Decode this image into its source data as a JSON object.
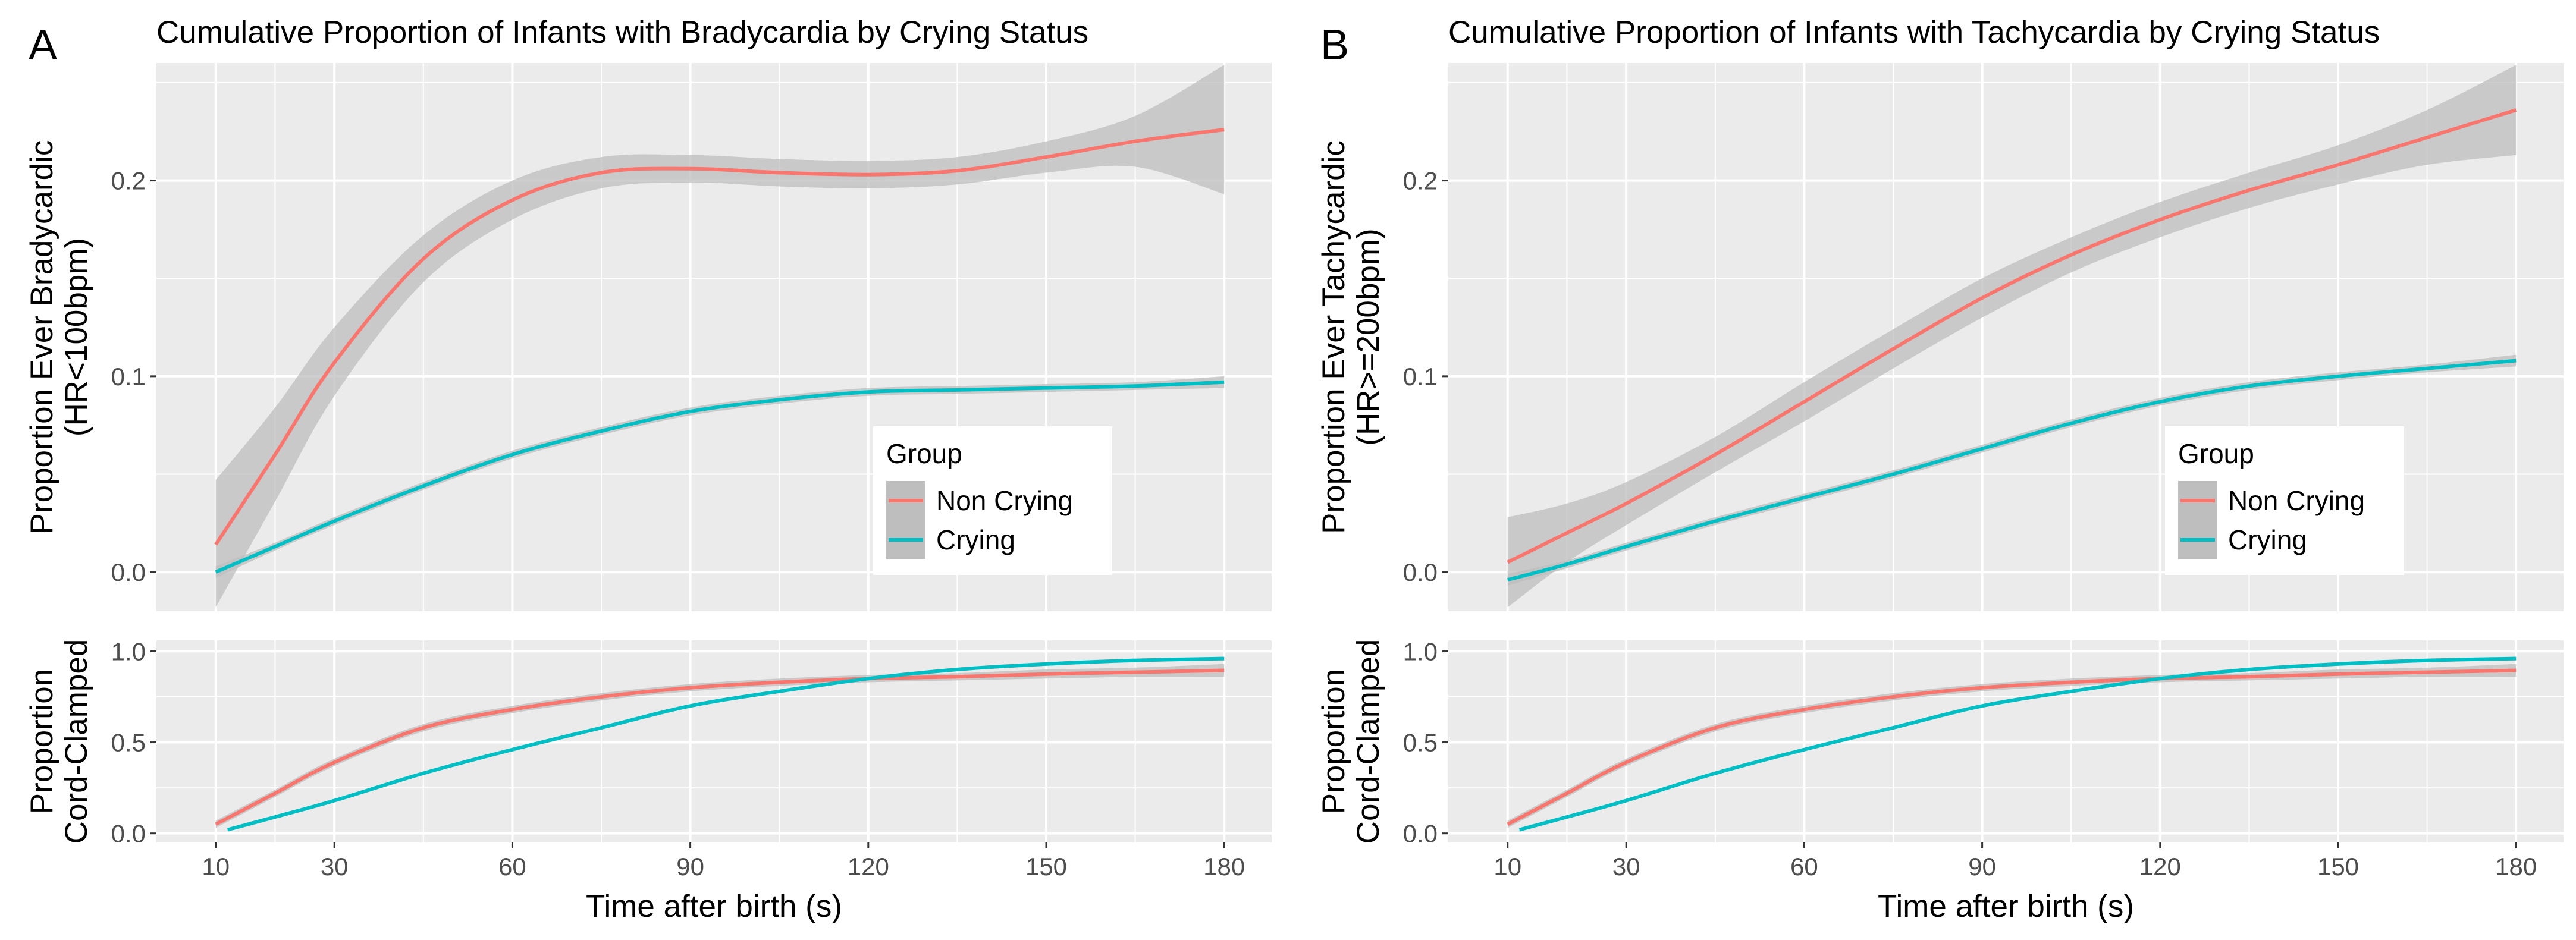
{
  "chart_data": [
    {
      "type": "line",
      "panel_label": "A",
      "title": "Cumulative Proportion of Infants with Bradycardia by Crying Status",
      "xlabel": "Time after birth (s)",
      "x_ticks": [
        10,
        30,
        60,
        90,
        120,
        150,
        180
      ],
      "xlim": [
        0,
        188
      ],
      "legend": {
        "title": "Group",
        "placement": "right",
        "entries": [
          "Non Crying",
          "Crying"
        ]
      },
      "top": {
        "ylabel_line1": "Proportion Ever Bradycardic",
        "ylabel_line2": "(HR<100bpm)",
        "ylim": [
          -0.02,
          0.26
        ],
        "y_ticks": [
          0.0,
          0.1,
          0.2
        ],
        "y_tick_labels": [
          "0.0",
          "0.1",
          "0.2"
        ],
        "series": [
          {
            "name": "Non Crying",
            "color": "#F8766D",
            "points": [
              [
                10,
                0.014
              ],
              [
                20,
                0.06
              ],
              [
                30,
                0.107
              ],
              [
                45,
                0.16
              ],
              [
                60,
                0.19
              ],
              [
                75,
                0.204
              ],
              [
                90,
                0.206
              ],
              [
                105,
                0.204
              ],
              [
                120,
                0.203
              ],
              [
                135,
                0.205
              ],
              [
                150,
                0.212
              ],
              [
                165,
                0.22
              ],
              [
                180,
                0.226
              ]
            ],
            "ci_lower": [
              -0.018,
              0.036,
              0.09,
              0.148,
              0.18,
              0.196,
              0.199,
              0.197,
              0.196,
              0.198,
              0.204,
              0.207,
              0.193
            ],
            "ci_upper": [
              0.047,
              0.084,
              0.125,
              0.172,
              0.2,
              0.212,
              0.213,
              0.211,
              0.21,
              0.212,
              0.22,
              0.233,
              0.259
            ]
          },
          {
            "name": "Crying",
            "color": "#00BFC4",
            "points": [
              [
                10,
                0.0
              ],
              [
                20,
                0.013
              ],
              [
                30,
                0.026
              ],
              [
                45,
                0.044
              ],
              [
                60,
                0.06
              ],
              [
                75,
                0.072
              ],
              [
                90,
                0.082
              ],
              [
                105,
                0.088
              ],
              [
                120,
                0.092
              ],
              [
                135,
                0.093
              ],
              [
                150,
                0.094
              ],
              [
                165,
                0.095
              ],
              [
                180,
                0.097
              ]
            ],
            "ci_lower": [
              -0.003,
              0.011,
              0.024,
              0.042,
              0.058,
              0.07,
              0.08,
              0.086,
              0.09,
              0.091,
              0.092,
              0.093,
              0.094
            ],
            "ci_upper": [
              0.003,
              0.015,
              0.028,
              0.046,
              0.062,
              0.074,
              0.084,
              0.09,
              0.094,
              0.095,
              0.096,
              0.097,
              0.1
            ]
          }
        ]
      },
      "bottom": {
        "ylabel_line1": "Proportion",
        "ylabel_line2": "Cord-Clamped",
        "ylim": [
          -0.05,
          1.06
        ],
        "y_ticks": [
          0.0,
          0.5,
          1.0
        ],
        "y_tick_labels": [
          "0.0",
          "0.5",
          "1.0"
        ],
        "series": [
          {
            "name": "Non Crying",
            "color": "#F8766D",
            "points": [
              [
                10,
                0.05
              ],
              [
                20,
                0.22
              ],
              [
                30,
                0.39
              ],
              [
                45,
                0.58
              ],
              [
                60,
                0.68
              ],
              [
                75,
                0.75
              ],
              [
                90,
                0.8
              ],
              [
                105,
                0.83
              ],
              [
                120,
                0.85
              ],
              [
                135,
                0.86
              ],
              [
                150,
                0.875
              ],
              [
                165,
                0.885
              ],
              [
                180,
                0.895
              ]
            ],
            "ci_lower": [
              0.03,
              0.2,
              0.37,
              0.56,
              0.66,
              0.73,
              0.78,
              0.81,
              0.83,
              0.84,
              0.85,
              0.86,
              0.86
            ],
            "ci_upper": [
              0.07,
              0.24,
              0.41,
              0.6,
              0.7,
              0.77,
              0.82,
              0.85,
              0.87,
              0.88,
              0.9,
              0.91,
              0.93
            ]
          },
          {
            "name": "Crying",
            "color": "#00BFC4",
            "points": [
              [
                12,
                0.02
              ],
              [
                20,
                0.09
              ],
              [
                30,
                0.18
              ],
              [
                45,
                0.33
              ],
              [
                60,
                0.46
              ],
              [
                75,
                0.58
              ],
              [
                90,
                0.7
              ],
              [
                105,
                0.78
              ],
              [
                120,
                0.85
              ],
              [
                135,
                0.9
              ],
              [
                150,
                0.93
              ],
              [
                165,
                0.95
              ],
              [
                180,
                0.96
              ]
            ],
            "ci_lower": [
              0.01,
              0.08,
              0.17,
              0.32,
              0.45,
              0.57,
              0.69,
              0.77,
              0.84,
              0.89,
              0.92,
              0.94,
              0.95
            ],
            "ci_upper": [
              0.03,
              0.1,
              0.19,
              0.34,
              0.47,
              0.59,
              0.71,
              0.79,
              0.86,
              0.91,
              0.94,
              0.96,
              0.97
            ]
          }
        ]
      }
    },
    {
      "type": "line",
      "panel_label": "B",
      "title": "Cumulative Proportion of Infants with Tachycardia by Crying Status",
      "xlabel": "Time after birth (s)",
      "x_ticks": [
        10,
        30,
        60,
        90,
        120,
        150,
        180
      ],
      "xlim": [
        0,
        188
      ],
      "legend": {
        "title": "Group",
        "placement": "right",
        "entries": [
          "Non Crying",
          "Crying"
        ]
      },
      "top": {
        "ylabel_line1": "Proportion Ever Tachycardic",
        "ylabel_line2": "(HR>=200bpm)",
        "ylim": [
          -0.02,
          0.26
        ],
        "y_ticks": [
          0.0,
          0.1,
          0.2
        ],
        "y_tick_labels": [
          "0.0",
          "0.1",
          "0.2"
        ],
        "series": [
          {
            "name": "Non Crying",
            "color": "#F8766D",
            "points": [
              [
                10,
                0.005
              ],
              [
                20,
                0.02
              ],
              [
                30,
                0.035
              ],
              [
                45,
                0.06
              ],
              [
                60,
                0.087
              ],
              [
                75,
                0.114
              ],
              [
                90,
                0.14
              ],
              [
                105,
                0.162
              ],
              [
                120,
                0.18
              ],
              [
                135,
                0.195
              ],
              [
                150,
                0.208
              ],
              [
                165,
                0.222
              ],
              [
                180,
                0.236
              ]
            ],
            "ci_lower": [
              -0.018,
              0.005,
              0.024,
              0.051,
              0.077,
              0.104,
              0.13,
              0.153,
              0.171,
              0.186,
              0.198,
              0.208,
              0.213
            ],
            "ci_upper": [
              0.028,
              0.035,
              0.046,
              0.069,
              0.097,
              0.124,
              0.15,
              0.171,
              0.189,
              0.204,
              0.218,
              0.236,
              0.259
            ]
          },
          {
            "name": "Crying",
            "color": "#00BFC4",
            "points": [
              [
                10,
                -0.004
              ],
              [
                20,
                0.004
              ],
              [
                30,
                0.013
              ],
              [
                45,
                0.026
              ],
              [
                60,
                0.038
              ],
              [
                75,
                0.05
              ],
              [
                90,
                0.063
              ],
              [
                105,
                0.076
              ],
              [
                120,
                0.087
              ],
              [
                135,
                0.095
              ],
              [
                150,
                0.1
              ],
              [
                165,
                0.104
              ],
              [
                180,
                0.108
              ]
            ],
            "ci_lower": [
              -0.007,
              0.002,
              0.011,
              0.024,
              0.036,
              0.048,
              0.061,
              0.074,
              0.085,
              0.093,
              0.098,
              0.102,
              0.105
            ],
            "ci_upper": [
              -0.001,
              0.006,
              0.015,
              0.028,
              0.04,
              0.052,
              0.065,
              0.078,
              0.089,
              0.097,
              0.102,
              0.106,
              0.111
            ]
          }
        ]
      },
      "bottom": {
        "ylabel_line1": "Proportion",
        "ylabel_line2": "Cord-Clamped",
        "ylim": [
          -0.05,
          1.06
        ],
        "y_ticks": [
          0.0,
          0.5,
          1.0
        ],
        "y_tick_labels": [
          "0.0",
          "0.5",
          "1.0"
        ],
        "series": [
          {
            "name": "Non Crying",
            "color": "#F8766D",
            "points": [
              [
                10,
                0.05
              ],
              [
                20,
                0.22
              ],
              [
                30,
                0.39
              ],
              [
                45,
                0.58
              ],
              [
                60,
                0.68
              ],
              [
                75,
                0.75
              ],
              [
                90,
                0.8
              ],
              [
                105,
                0.83
              ],
              [
                120,
                0.85
              ],
              [
                135,
                0.86
              ],
              [
                150,
                0.875
              ],
              [
                165,
                0.885
              ],
              [
                180,
                0.895
              ]
            ],
            "ci_lower": [
              0.03,
              0.2,
              0.37,
              0.56,
              0.66,
              0.73,
              0.78,
              0.81,
              0.83,
              0.84,
              0.85,
              0.86,
              0.86
            ],
            "ci_upper": [
              0.07,
              0.24,
              0.41,
              0.6,
              0.7,
              0.77,
              0.82,
              0.85,
              0.87,
              0.88,
              0.9,
              0.91,
              0.93
            ]
          },
          {
            "name": "Crying",
            "color": "#00BFC4",
            "points": [
              [
                12,
                0.02
              ],
              [
                20,
                0.09
              ],
              [
                30,
                0.18
              ],
              [
                45,
                0.33
              ],
              [
                60,
                0.46
              ],
              [
                75,
                0.58
              ],
              [
                90,
                0.7
              ],
              [
                105,
                0.78
              ],
              [
                120,
                0.85
              ],
              [
                135,
                0.9
              ],
              [
                150,
                0.93
              ],
              [
                165,
                0.95
              ],
              [
                180,
                0.96
              ]
            ],
            "ci_lower": [
              0.01,
              0.08,
              0.17,
              0.32,
              0.45,
              0.57,
              0.69,
              0.77,
              0.84,
              0.89,
              0.92,
              0.94,
              0.95
            ],
            "ci_upper": [
              0.03,
              0.1,
              0.19,
              0.34,
              0.47,
              0.59,
              0.71,
              0.79,
              0.86,
              0.91,
              0.94,
              0.96,
              0.97
            ]
          }
        ]
      }
    }
  ],
  "style": {
    "panel_background": "#EBEBEB",
    "grid_color": "#FFFFFF",
    "ci_fill": "#BEBEBE",
    "tick_color": "#333333"
  }
}
